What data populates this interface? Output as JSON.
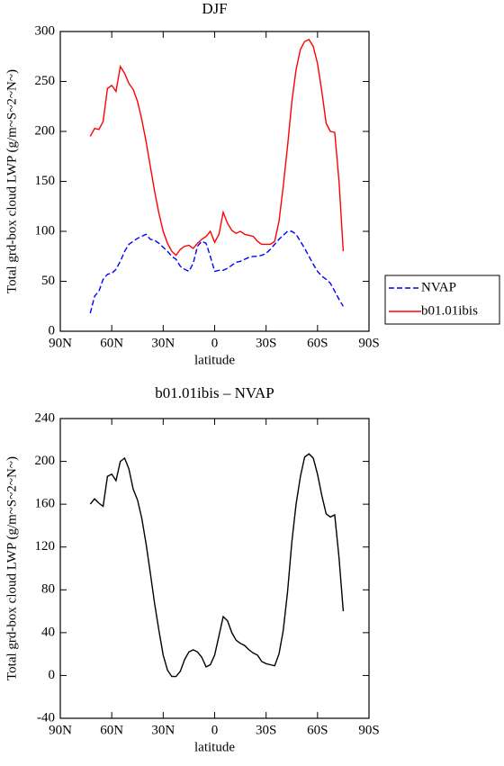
{
  "chart_data": [
    {
      "type": "line",
      "title": "DJF",
      "xlabel": "latitude",
      "ylabel": "Total grd-box cloud LWP (g/m~S~2~N~)",
      "x": [
        72.5,
        70,
        67.5,
        65,
        62.5,
        60,
        57.5,
        55,
        52.5,
        50,
        47.5,
        45,
        42.5,
        40,
        37.5,
        35,
        32.5,
        30,
        27.5,
        25,
        22.5,
        20,
        17.5,
        15,
        12.5,
        10,
        7.5,
        5,
        2.5,
        0,
        -2.5,
        -5,
        -7.5,
        -10,
        -12.5,
        -15,
        -17.5,
        -20,
        -22.5,
        -25,
        -27.5,
        -30,
        -32.5,
        -35,
        -37.5,
        -40,
        -42.5,
        -45,
        -47.5,
        -50,
        -52.5,
        -55,
        -57.5,
        -60,
        -62.5,
        -65,
        -67.5,
        -70,
        -72.5,
        -75
      ],
      "series": [
        {
          "name": "NVAP",
          "color": "#0000ff",
          "style": "dashed",
          "values": [
            18,
            35,
            40,
            52,
            57,
            58,
            62,
            70,
            80,
            87,
            90,
            93,
            95,
            97,
            92,
            91,
            88,
            84,
            80,
            75,
            72,
            65,
            62,
            60,
            68,
            85,
            90,
            88,
            75,
            60,
            61,
            61,
            63,
            66,
            69,
            70,
            72,
            74,
            75,
            75,
            76,
            78,
            82,
            87,
            92,
            96,
            100,
            100,
            97,
            90,
            83,
            75,
            67,
            60,
            55,
            52,
            48,
            40,
            32,
            25
          ]
        },
        {
          "name": "b01.01ibis",
          "color": "#ff0000",
          "style": "solid",
          "values": [
            195,
            203,
            202,
            210,
            243,
            246,
            240,
            265,
            258,
            248,
            242,
            230,
            212,
            190,
            165,
            140,
            118,
            100,
            88,
            80,
            76,
            82,
            85,
            86,
            83,
            88,
            92,
            95,
            100,
            89,
            97,
            119,
            108,
            101,
            98,
            100,
            97,
            96,
            95,
            90,
            87,
            87,
            87,
            90,
            110,
            145,
            185,
            230,
            262,
            282,
            290,
            292,
            285,
            268,
            240,
            208,
            200,
            199,
            150,
            80
          ]
        }
      ],
      "xlim": [
        90,
        -90
      ],
      "xticks": [
        {
          "value": 90,
          "label": "90N"
        },
        {
          "value": 60,
          "label": "60N"
        },
        {
          "value": 30,
          "label": "30N"
        },
        0,
        {
          "value": -30,
          "label": "30S"
        },
        {
          "value": -60,
          "label": "60S"
        },
        {
          "value": -90,
          "label": "90S"
        }
      ],
      "ylim": [
        0,
        300
      ],
      "yticks": [
        0,
        50,
        100,
        150,
        200,
        250,
        300
      ],
      "legend": "right"
    },
    {
      "type": "line",
      "title": "b01.01ibis – NVAP",
      "xlabel": "latitude",
      "ylabel": "Total grd-box cloud LWP (g/m~S~2~N~)",
      "x": [
        72.5,
        70,
        67.5,
        65,
        62.5,
        60,
        57.5,
        55,
        52.5,
        50,
        47.5,
        45,
        42.5,
        40,
        37.5,
        35,
        32.5,
        30,
        27.5,
        25,
        22.5,
        20,
        17.5,
        15,
        12.5,
        10,
        7.5,
        5,
        2.5,
        0,
        -2.5,
        -5,
        -7.5,
        -10,
        -12.5,
        -15,
        -17.5,
        -20,
        -22.5,
        -25,
        -27.5,
        -30,
        -32.5,
        -35,
        -37.5,
        -40,
        -42.5,
        -45,
        -47.5,
        -50,
        -52.5,
        -55,
        -57.5,
        -60,
        -62.5,
        -65,
        -67.5,
        -70,
        -72.5,
        -75
      ],
      "color": "#000000",
      "values": [
        160,
        165,
        161,
        158,
        186,
        188,
        182,
        200,
        203,
        193,
        174,
        164,
        147,
        123,
        96,
        67,
        42,
        19,
        5,
        -1,
        -1,
        4,
        15,
        22,
        24,
        22,
        17,
        8,
        10,
        19,
        37,
        55,
        51,
        40,
        33,
        30,
        28,
        24,
        21,
        19,
        13,
        11,
        10,
        9,
        20,
        42,
        78,
        125,
        160,
        186,
        204,
        207,
        203,
        188,
        168,
        151,
        148,
        150,
        110,
        60
      ],
      "xlim": [
        90,
        -90
      ],
      "xticks": [
        {
          "value": 90,
          "label": "90N"
        },
        {
          "value": 60,
          "label": "60N"
        },
        {
          "value": 30,
          "label": "30N"
        },
        0,
        {
          "value": -30,
          "label": "30S"
        },
        {
          "value": -60,
          "label": "60S"
        },
        {
          "value": -90,
          "label": "90S"
        }
      ],
      "ylim": [
        -40,
        240
      ],
      "yticks": [
        -40,
        0,
        40,
        80,
        120,
        160,
        200,
        240
      ]
    }
  ]
}
